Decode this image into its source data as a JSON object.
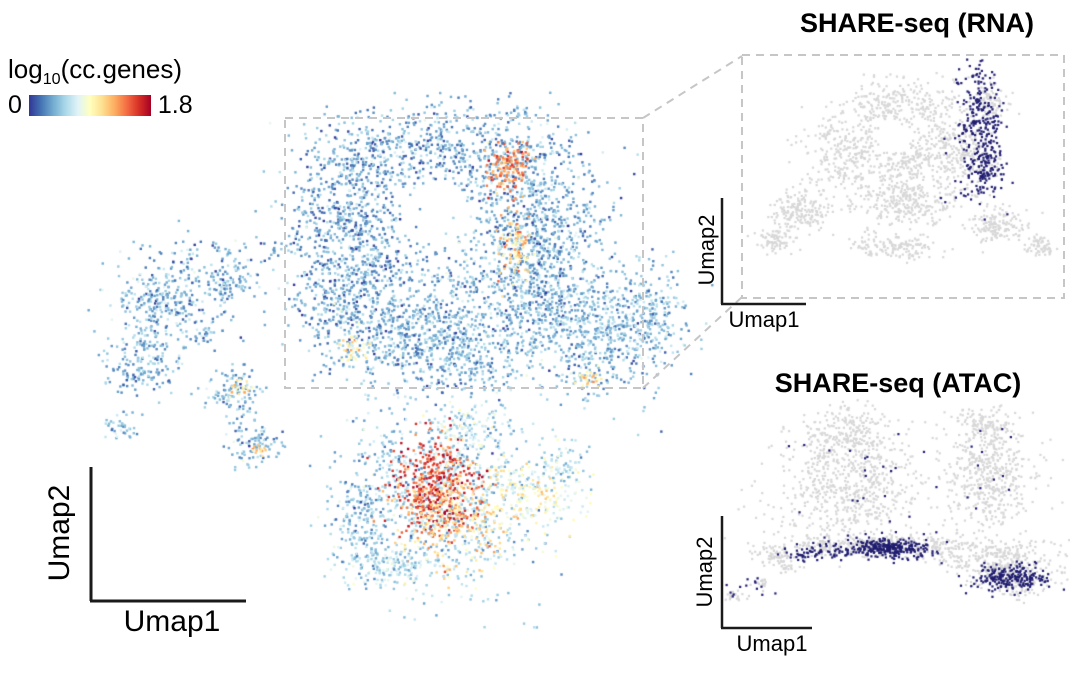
{
  "figure": {
    "bg": "#ffffff"
  },
  "legend": {
    "label_prefix": "log",
    "label_sub": "10",
    "label_suffix": "(cc.genes)",
    "min_label": "0",
    "max_label": "1.8",
    "stops": [
      "#313695",
      "#4575b4",
      "#74add1",
      "#abd9e9",
      "#e0f3f8",
      "#ffffbf",
      "#fee090",
      "#fdae61",
      "#f46d43",
      "#d73027",
      "#a50026"
    ]
  },
  "main_plot": {
    "xlabel": "Umap1",
    "ylabel": "Umap2"
  },
  "rna_panel": {
    "title": "SHARE-seq (RNA)",
    "xlabel": "Umap1",
    "ylabel": "Umap2"
  },
  "atac_panel": {
    "title": "SHARE-seq (ATAC)",
    "xlabel": "Umap1",
    "ylabel": "Umap2"
  },
  "chart_data": [
    {
      "id": "main-umap",
      "canvas": "main-canvas",
      "type": "scatter",
      "title": "",
      "xlabel": "Umap1",
      "ylabel": "Umap2",
      "color_scale": {
        "label": "log10(cc.genes)",
        "min": 0,
        "max": 1.8,
        "palette": "RdYlBu_r"
      },
      "seed": 7,
      "point_size": 2.4,
      "value_jitter": 0.16,
      "vmax": 1.8,
      "hole": {
        "cx": 0.555,
        "cy": 0.231,
        "rx": 0.052,
        "ry": 0.062
      },
      "clusters": [
        {
          "cx": 0.57,
          "cy": 0.105,
          "rx": 0.07,
          "ry": 0.045,
          "n": 400,
          "value": 0.35
        },
        {
          "cx": 0.695,
          "cy": 0.139,
          "rx": 0.05,
          "ry": 0.045,
          "n": 300,
          "value": 0.38
        },
        {
          "cx": 0.742,
          "cy": 0.269,
          "rx": 0.045,
          "ry": 0.05,
          "n": 300,
          "value": 0.38
        },
        {
          "cx": 0.719,
          "cy": 0.398,
          "rx": 0.05,
          "ry": 0.05,
          "n": 300,
          "value": 0.38
        },
        {
          "cx": 0.602,
          "cy": 0.481,
          "rx": 0.06,
          "ry": 0.045,
          "n": 350,
          "value": 0.4
        },
        {
          "cx": 0.477,
          "cy": 0.463,
          "rx": 0.055,
          "ry": 0.045,
          "n": 300,
          "value": 0.35
        },
        {
          "cx": 0.398,
          "cy": 0.38,
          "rx": 0.04,
          "ry": 0.05,
          "n": 250,
          "value": 0.35
        },
        {
          "cx": 0.391,
          "cy": 0.241,
          "rx": 0.04,
          "ry": 0.05,
          "n": 250,
          "value": 0.32
        },
        {
          "cx": 0.445,
          "cy": 0.13,
          "rx": 0.05,
          "ry": 0.045,
          "n": 280,
          "value": 0.35
        },
        {
          "cx": 0.57,
          "cy": 0.38,
          "rx": 0.09,
          "ry": 0.075,
          "n": 500,
          "value": 0.38
        },
        {
          "cx": 0.688,
          "cy": 0.259,
          "rx": 0.04,
          "ry": 0.06,
          "n": 250,
          "value": 0.36
        },
        {
          "cx": 0.453,
          "cy": 0.296,
          "rx": 0.035,
          "ry": 0.06,
          "n": 220,
          "value": 0.33
        },
        {
          "cx": 0.667,
          "cy": 0.144,
          "rx": 0.018,
          "ry": 0.024,
          "n": 130,
          "value": 1.35
        },
        {
          "cx": 0.677,
          "cy": 0.296,
          "rx": 0.014,
          "ry": 0.035,
          "n": 90,
          "value": 1.1
        },
        {
          "cx": 0.425,
          "cy": 0.476,
          "rx": 0.012,
          "ry": 0.012,
          "n": 40,
          "value": 0.95
        },
        {
          "cx": 0.813,
          "cy": 0.444,
          "rx": 0.055,
          "ry": 0.065,
          "n": 550,
          "value": 0.4
        },
        {
          "cx": 0.891,
          "cy": 0.407,
          "rx": 0.03,
          "ry": 0.04,
          "n": 150,
          "value": 0.42
        },
        {
          "cx": 0.794,
          "cy": 0.533,
          "rx": 0.01,
          "ry": 0.01,
          "n": 25,
          "value": 1.05
        },
        {
          "cx": 0.57,
          "cy": 0.75,
          "rx": 0.075,
          "ry": 0.09,
          "n": 800,
          "value": 0.5
        },
        {
          "cx": 0.55,
          "cy": 0.737,
          "rx": 0.032,
          "ry": 0.045,
          "n": 420,
          "value": 1.55
        },
        {
          "cx": 0.586,
          "cy": 0.787,
          "rx": 0.045,
          "ry": 0.05,
          "n": 260,
          "value": 1.1
        },
        {
          "cx": 0.441,
          "cy": 0.796,
          "rx": 0.025,
          "ry": 0.05,
          "n": 200,
          "value": 0.45
        },
        {
          "cx": 0.484,
          "cy": 0.88,
          "rx": 0.04,
          "ry": 0.02,
          "n": 150,
          "value": 0.55
        },
        {
          "cx": 0.703,
          "cy": 0.75,
          "rx": 0.035,
          "ry": 0.03,
          "n": 180,
          "value": 0.85
        },
        {
          "cx": 0.75,
          "cy": 0.694,
          "rx": 0.02,
          "ry": 0.025,
          "n": 80,
          "value": 0.55
        },
        {
          "cx": 0.602,
          "cy": 0.63,
          "rx": 0.03,
          "ry": 0.02,
          "n": 100,
          "value": 0.65
        },
        {
          "cx": 0.133,
          "cy": 0.38,
          "rx": 0.042,
          "ry": 0.04,
          "n": 300,
          "value": 0.4
        },
        {
          "cx": 0.094,
          "cy": 0.5,
          "rx": 0.03,
          "ry": 0.033,
          "n": 180,
          "value": 0.38
        },
        {
          "cx": 0.227,
          "cy": 0.356,
          "rx": 0.02,
          "ry": 0.02,
          "n": 90,
          "value": 0.4
        },
        {
          "cx": 0.238,
          "cy": 0.556,
          "rx": 0.024,
          "ry": 0.024,
          "n": 110,
          "value": 0.4
        },
        {
          "cx": 0.247,
          "cy": 0.552,
          "rx": 0.008,
          "ry": 0.008,
          "n": 18,
          "value": 1.05
        },
        {
          "cx": 0.27,
          "cy": 0.657,
          "rx": 0.02,
          "ry": 0.02,
          "n": 90,
          "value": 0.4
        },
        {
          "cx": 0.277,
          "cy": 0.665,
          "rx": 0.007,
          "ry": 0.007,
          "n": 15,
          "value": 1.15
        },
        {
          "cx": 0.063,
          "cy": 0.62,
          "rx": 0.012,
          "ry": 0.012,
          "n": 35,
          "value": 0.38
        },
        {
          "cx": 0.25,
          "cy": 0.296,
          "rx": 0.085,
          "ry": 0.015,
          "n": 70,
          "value": 0.33
        },
        {
          "cx": 0.195,
          "cy": 0.448,
          "rx": 0.01,
          "ry": 0.01,
          "n": 25,
          "value": 0.4
        },
        {
          "cx": 0.688,
          "cy": 0.041,
          "rx": 0.012,
          "ry": 0.008,
          "n": 20,
          "value": 0.38
        }
      ]
    },
    {
      "id": "rna-umap",
      "canvas": "rna-canvas",
      "type": "scatter",
      "title": "SHARE-seq (RNA)",
      "xlabel": "Umap1",
      "ylabel": "Umap2",
      "seed": 11,
      "point_size": 2.2,
      "base_color": "#d7d7d7",
      "highlight_color": "#201d70",
      "hole": {
        "cx": 0.473,
        "cy": 0.324,
        "rx": 0.05,
        "ry": 0.07
      },
      "clusters": [
        {
          "cx": 0.505,
          "cy": 0.197,
          "rx": 0.09,
          "ry": 0.06,
          "n": 300,
          "color": "base"
        },
        {
          "cx": 0.662,
          "cy": 0.387,
          "rx": 0.06,
          "ry": 0.07,
          "n": 250,
          "color": "base"
        },
        {
          "cx": 0.315,
          "cy": 0.387,
          "rx": 0.06,
          "ry": 0.08,
          "n": 250,
          "color": "base"
        },
        {
          "cx": 0.489,
          "cy": 0.597,
          "rx": 0.09,
          "ry": 0.05,
          "n": 300,
          "color": "base"
        },
        {
          "cx": 0.489,
          "cy": 0.429,
          "rx": 0.05,
          "ry": 0.05,
          "n": 150,
          "color": "base"
        },
        {
          "cx": 0.174,
          "cy": 0.639,
          "rx": 0.045,
          "ry": 0.045,
          "n": 180,
          "color": "base"
        },
        {
          "cx": 0.095,
          "cy": 0.765,
          "rx": 0.03,
          "ry": 0.025,
          "n": 80,
          "color": "base"
        },
        {
          "cx": 0.473,
          "cy": 0.786,
          "rx": 0.07,
          "ry": 0.03,
          "n": 150,
          "color": "base"
        },
        {
          "cx": 0.804,
          "cy": 0.702,
          "rx": 0.05,
          "ry": 0.04,
          "n": 150,
          "color": "base"
        },
        {
          "cx": 0.931,
          "cy": 0.786,
          "rx": 0.025,
          "ry": 0.02,
          "n": 60,
          "color": "base"
        },
        {
          "cx": 0.773,
          "cy": 0.176,
          "rx": 0.03,
          "ry": 0.035,
          "n": 80,
          "color": "base"
        },
        {
          "cx": 0.662,
          "cy": 0.555,
          "rx": 0.05,
          "ry": 0.02,
          "n": 15,
          "color": "base"
        },
        {
          "cx": 0.741,
          "cy": 0.303,
          "rx": 0.038,
          "ry": 0.15,
          "n": 280,
          "color": "highlight"
        },
        {
          "cx": 0.757,
          "cy": 0.471,
          "rx": 0.025,
          "ry": 0.04,
          "n": 70,
          "color": "highlight"
        },
        {
          "cx": 0.662,
          "cy": 0.576,
          "rx": 0.05,
          "ry": 0.02,
          "n": 10,
          "color": "highlight"
        }
      ]
    },
    {
      "id": "atac-umap",
      "canvas": "atac-canvas",
      "type": "scatter",
      "title": "SHARE-seq (ATAC)",
      "xlabel": "Umap1",
      "ylabel": "Umap2",
      "seed": 13,
      "point_size": 2.2,
      "base_color": "#d7d7d7",
      "highlight_color": "#201d70",
      "clusters": [
        {
          "cx": 0.361,
          "cy": 0.349,
          "rx": 0.1,
          "ry": 0.136,
          "n": 700,
          "color": "base"
        },
        {
          "cx": 0.375,
          "cy": 0.136,
          "rx": 0.06,
          "ry": 0.05,
          "n": 150,
          "color": "base"
        },
        {
          "cx": 0.773,
          "cy": 0.328,
          "rx": 0.071,
          "ry": 0.128,
          "n": 500,
          "color": "base"
        },
        {
          "cx": 0.758,
          "cy": 0.115,
          "rx": 0.04,
          "ry": 0.04,
          "n": 100,
          "color": "base"
        },
        {
          "cx": 0.489,
          "cy": 0.626,
          "rx": 0.2,
          "ry": 0.022,
          "n": 400,
          "color": "base"
        },
        {
          "cx": 0.801,
          "cy": 0.689,
          "rx": 0.08,
          "ry": 0.038,
          "n": 200,
          "color": "base"
        },
        {
          "cx": 0.844,
          "cy": 0.774,
          "rx": 0.06,
          "ry": 0.035,
          "n": 150,
          "color": "base"
        },
        {
          "cx": 0.048,
          "cy": 0.838,
          "rx": 0.015,
          "ry": 0.01,
          "n": 20,
          "color": "base"
        },
        {
          "cx": 0.119,
          "cy": 0.783,
          "rx": 0.015,
          "ry": 0.01,
          "n": 18,
          "color": "base"
        },
        {
          "cx": 0.19,
          "cy": 0.723,
          "rx": 0.015,
          "ry": 0.01,
          "n": 18,
          "color": "base"
        },
        {
          "cx": 0.162,
          "cy": 0.668,
          "rx": 0.03,
          "ry": 0.02,
          "n": 60,
          "color": "base"
        },
        {
          "cx": 0.474,
          "cy": 0.634,
          "rx": 0.075,
          "ry": 0.022,
          "n": 300,
          "color": "highlight"
        },
        {
          "cx": 0.276,
          "cy": 0.66,
          "rx": 0.05,
          "ry": 0.015,
          "n": 60,
          "color": "highlight"
        },
        {
          "cx": 0.83,
          "cy": 0.762,
          "rx": 0.055,
          "ry": 0.028,
          "n": 220,
          "color": "highlight"
        },
        {
          "cx": 0.389,
          "cy": 0.349,
          "rx": 0.11,
          "ry": 0.14,
          "n": 22,
          "color": "highlight"
        },
        {
          "cx": 0.773,
          "cy": 0.306,
          "rx": 0.05,
          "ry": 0.09,
          "n": 12,
          "color": "highlight"
        },
        {
          "cx": 0.091,
          "cy": 0.808,
          "rx": 0.045,
          "ry": 0.025,
          "n": 16,
          "color": "highlight"
        }
      ]
    }
  ]
}
